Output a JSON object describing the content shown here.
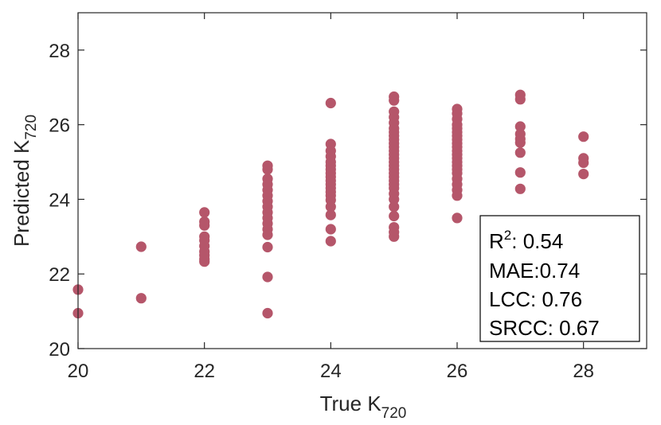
{
  "chart_data": {
    "type": "scatter",
    "xlabel": {
      "main": "True K",
      "sub": "720"
    },
    "ylabel": {
      "main": "Predicted K",
      "sub": "720"
    },
    "xlim": [
      20,
      29
    ],
    "ylim": [
      20,
      29
    ],
    "x_ticks": [
      "20",
      "22",
      "24",
      "26",
      "28"
    ],
    "y_ticks": [
      "20",
      "22",
      "24",
      "26",
      "28"
    ],
    "grid": false,
    "marker_color": "#b5566a",
    "stats": {
      "r2": {
        "main": "R",
        "sup": "2",
        "rest": ": 0.54"
      },
      "mae": "MAE:0.74",
      "lcc": "LCC: 0.76",
      "srcc": "SRCC: 0.67"
    },
    "points": [
      [
        20,
        21.58
      ],
      [
        20,
        20.95
      ],
      [
        21,
        22.73
      ],
      [
        21,
        21.35
      ],
      [
        22,
        23.65
      ],
      [
        22,
        23.4
      ],
      [
        22,
        23.3
      ],
      [
        22,
        23.0
      ],
      [
        22,
        22.9
      ],
      [
        22,
        22.75
      ],
      [
        22,
        22.6
      ],
      [
        22,
        22.5
      ],
      [
        22,
        22.4
      ],
      [
        22,
        22.33
      ],
      [
        23,
        24.9
      ],
      [
        23,
        24.8
      ],
      [
        23,
        24.55
      ],
      [
        23,
        24.4
      ],
      [
        23,
        24.25
      ],
      [
        23,
        24.1
      ],
      [
        23,
        23.95
      ],
      [
        23,
        23.8
      ],
      [
        23,
        23.65
      ],
      [
        23,
        23.5
      ],
      [
        23,
        23.35
      ],
      [
        23,
        23.2
      ],
      [
        23,
        23.05
      ],
      [
        23,
        22.72
      ],
      [
        23,
        21.92
      ],
      [
        23,
        20.95
      ],
      [
        24,
        26.58
      ],
      [
        24,
        25.48
      ],
      [
        24,
        25.3
      ],
      [
        24,
        25.15
      ],
      [
        24,
        25.0
      ],
      [
        24,
        24.9
      ],
      [
        24,
        24.8
      ],
      [
        24,
        24.7
      ],
      [
        24,
        24.6
      ],
      [
        24,
        24.5
      ],
      [
        24,
        24.4
      ],
      [
        24,
        24.3
      ],
      [
        24,
        24.2
      ],
      [
        24,
        24.1
      ],
      [
        24,
        23.98
      ],
      [
        24,
        23.8
      ],
      [
        24,
        23.58
      ],
      [
        24,
        23.2
      ],
      [
        24,
        22.88
      ],
      [
        25,
        26.75
      ],
      [
        25,
        26.65
      ],
      [
        25,
        26.35
      ],
      [
        25,
        26.2
      ],
      [
        25,
        26.05
      ],
      [
        25,
        25.9
      ],
      [
        25,
        25.8
      ],
      [
        25,
        25.7
      ],
      [
        25,
        25.6
      ],
      [
        25,
        25.5
      ],
      [
        25,
        25.4
      ],
      [
        25,
        25.3
      ],
      [
        25,
        25.2
      ],
      [
        25,
        25.1
      ],
      [
        25,
        25.0
      ],
      [
        25,
        24.9
      ],
      [
        25,
        24.8
      ],
      [
        25,
        24.7
      ],
      [
        25,
        24.6
      ],
      [
        25,
        24.5
      ],
      [
        25,
        24.4
      ],
      [
        25,
        24.3
      ],
      [
        25,
        24.15
      ],
      [
        25,
        24.0
      ],
      [
        25,
        23.8
      ],
      [
        25,
        23.55
      ],
      [
        25,
        23.25
      ],
      [
        25,
        23.12
      ],
      [
        25,
        23.0
      ],
      [
        26,
        26.42
      ],
      [
        26,
        26.3
      ],
      [
        26,
        26.15
      ],
      [
        26,
        26.0
      ],
      [
        26,
        25.9
      ],
      [
        26,
        25.8
      ],
      [
        26,
        25.7
      ],
      [
        26,
        25.6
      ],
      [
        26,
        25.5
      ],
      [
        26,
        25.4
      ],
      [
        26,
        25.3
      ],
      [
        26,
        25.2
      ],
      [
        26,
        25.1
      ],
      [
        26,
        25.0
      ],
      [
        26,
        24.9
      ],
      [
        26,
        24.8
      ],
      [
        26,
        24.7
      ],
      [
        26,
        24.55
      ],
      [
        26,
        24.4
      ],
      [
        26,
        24.25
      ],
      [
        26,
        24.1
      ],
      [
        26,
        23.5
      ],
      [
        27,
        26.8
      ],
      [
        27,
        26.68
      ],
      [
        27,
        25.95
      ],
      [
        27,
        25.75
      ],
      [
        27,
        25.62
      ],
      [
        27,
        25.52
      ],
      [
        27,
        25.25
      ],
      [
        27,
        24.72
      ],
      [
        27,
        24.28
      ],
      [
        28,
        25.68
      ],
      [
        28,
        25.1
      ],
      [
        28,
        24.98
      ],
      [
        28,
        24.68
      ]
    ]
  }
}
